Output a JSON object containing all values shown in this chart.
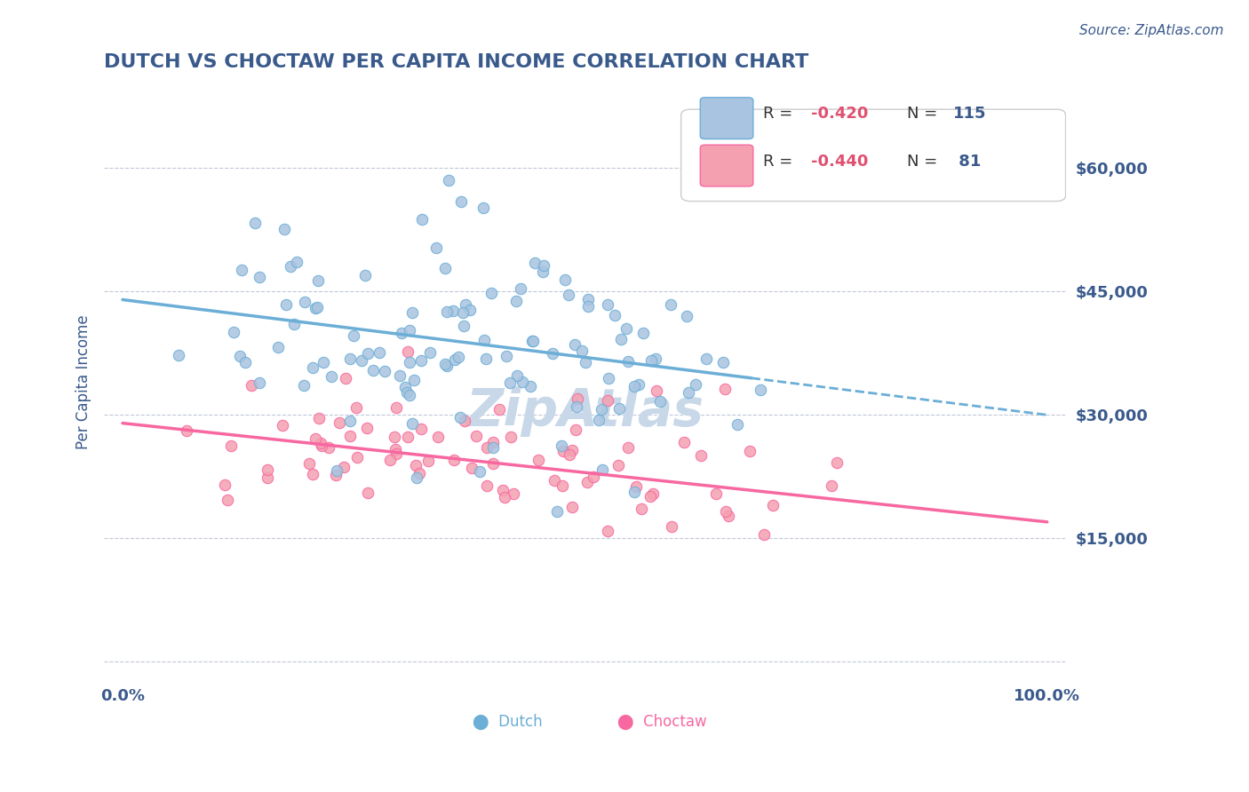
{
  "title": "DUTCH VS CHOCTAW PER CAPITA INCOME CORRELATION CHART",
  "source_text": "Source: ZipAtlas.com",
  "xlabel": "",
  "ylabel": "Per Capita Income",
  "xlim": [
    0.0,
    1.0
  ],
  "ylim": [
    0,
    67000
  ],
  "yticks": [
    0,
    15000,
    30000,
    45000,
    60000
  ],
  "ytick_labels": [
    "",
    "$15,000",
    "$30,000",
    "$45,000",
    "$60,000"
  ],
  "xtick_labels": [
    "0.0%",
    "100.0%"
  ],
  "dutch_R": -0.42,
  "dutch_N": 115,
  "choctaw_R": -0.44,
  "choctaw_N": 81,
  "dutch_color": "#a8c4e0",
  "choctaw_color": "#f4a0b0",
  "dutch_line_color": "#6baed6",
  "choctaw_line_color": "#f768a1",
  "title_color": "#3a5a8c",
  "axis_label_color": "#3a5a8c",
  "tick_color": "#3a5a8c",
  "source_color": "#3a5a8c",
  "watermark_color": "#c8d8e8",
  "background_color": "#ffffff",
  "grid_color": "#c0c8d8",
  "dutch_line_intercept": 44000,
  "dutch_line_slope": -14000,
  "choctaw_line_intercept": 29000,
  "choctaw_line_slope": -12000,
  "legend_R_color": "#e05070",
  "legend_N_color": "#3a5a8c"
}
